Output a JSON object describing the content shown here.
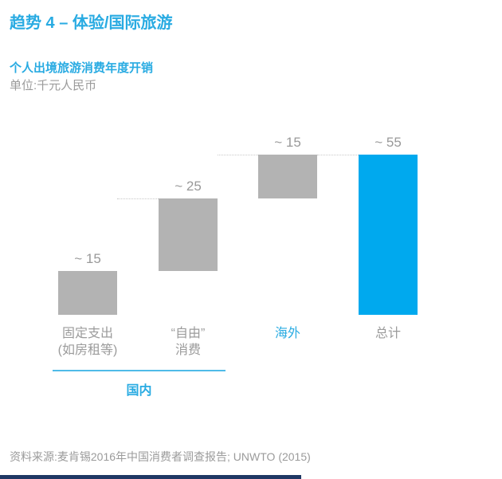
{
  "page": {
    "title": "趋势 4 – 体验/国际旅游"
  },
  "chart": {
    "subtitle": "个人出境旅游消费年度开销",
    "unit_label": "单位:千元人民币"
  },
  "chart_data": {
    "type": "bar",
    "variant": "waterfall",
    "title": "个人出境旅游消费年度开销",
    "unit": "千元人民币",
    "categories": [
      "固定支出(如房租等)",
      "“自由”消费",
      "海外",
      "总计"
    ],
    "values": [
      15,
      25,
      15,
      55
    ],
    "value_labels": [
      "~ 15",
      "~ 25",
      "~ 15",
      "~ 55"
    ],
    "items": [
      {
        "label_lines": [
          "固定支出",
          "(如房租等)"
        ],
        "value": 15,
        "display": "~ 15",
        "color": "gray",
        "label_color": "gray",
        "total": false
      },
      {
        "label_lines": [
          "“自由”",
          "消费"
        ],
        "value": 25,
        "display": "~ 25",
        "color": "gray",
        "label_color": "gray",
        "total": false
      },
      {
        "label_lines": [
          "海外"
        ],
        "value": 15,
        "display": "~ 15",
        "color": "gray",
        "label_color": "cyan",
        "total": false
      },
      {
        "label_lines": [
          "总计"
        ],
        "value": 55,
        "display": "~ 55",
        "color": "cyan",
        "label_color": "gray",
        "total": true
      }
    ],
    "group_annotation": {
      "label": "国内",
      "span": [
        0,
        1
      ]
    },
    "ylim": [
      0,
      60
    ],
    "grid": false,
    "legend": false
  },
  "footer": {
    "source": "资料来源:麦肯锡2016年中国消费者调查报告; UNWTO (2015)"
  },
  "colors": {
    "accent_cyan": "#29ABE2",
    "bar_gray": "#B3B3B3",
    "bar_cyan": "#00A9EE",
    "text_gray": "#9B9B9B",
    "connector_gray": "#C8C8C8",
    "footer_navy": "#1F3864"
  }
}
